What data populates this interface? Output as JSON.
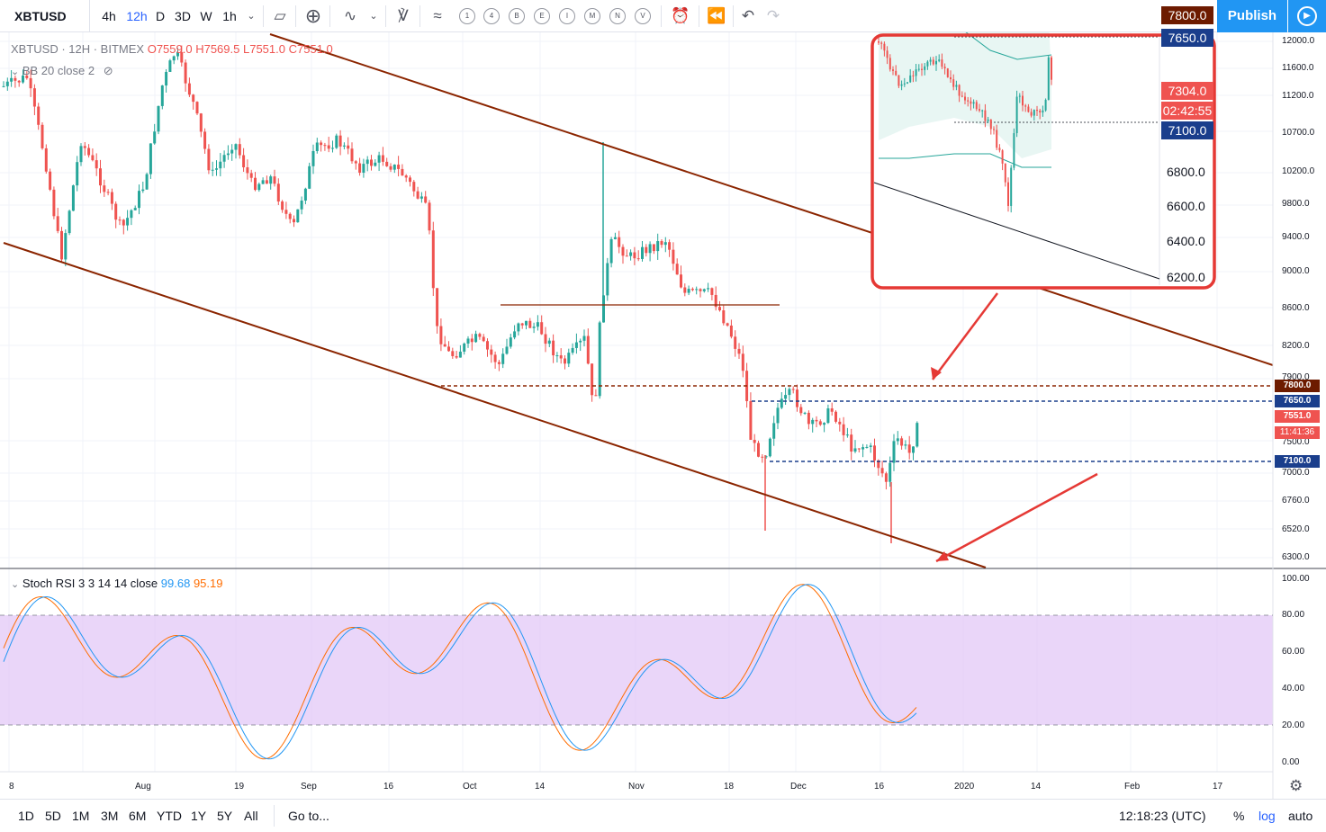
{
  "toolbar": {
    "symbol": "XBTUSD",
    "intervals": [
      "4h",
      "12h",
      "D",
      "3D",
      "W",
      "1h"
    ],
    "active_interval": "12h",
    "indicator_circles": [
      "1",
      "4",
      "B",
      "E",
      "I",
      "M",
      "N",
      "V"
    ],
    "publish_label": "Publish"
  },
  "legend": {
    "main": "XBTUSD · 12H · BITMEX",
    "open": "O7559.0",
    "high": "H7569.5",
    "low": "L7551.0",
    "close": "C7551.0",
    "indicator": "BB 20 close 2"
  },
  "stoch": {
    "label": "Stoch RSI 3 3 14 14 close",
    "k": "99.68",
    "d": "95.19"
  },
  "price_axis": [
    "12000.0",
    "11600.0",
    "11200.0",
    "10700.0",
    "10200.0",
    "9800.0",
    "9400.0",
    "9000.0",
    "8600.0",
    "8200.0",
    "7900.0",
    "7500.0",
    "7000.0",
    "6760.0",
    "6520.0",
    "6300.0"
  ],
  "price_tags": {
    "r1": "7800.0",
    "r2": "7650.0",
    "last": "7551.0",
    "countdown": "11:41:36",
    "s1": "7100.0"
  },
  "stoch_axis": [
    "100.00",
    "80.00",
    "60.00",
    "40.00",
    "20.00",
    "0.00"
  ],
  "time_axis": [
    "8",
    "Aug",
    "19",
    "Sep",
    "16",
    "Oct",
    "14",
    "Nov",
    "18",
    "Dec",
    "16",
    "2020",
    "14",
    "Feb",
    "17"
  ],
  "inset": {
    "tags": {
      "r1": "7800.0",
      "r2": "7650.0",
      "last": "7304.0",
      "countdown": "02:42:55",
      "s1": "7100.0"
    },
    "axis": [
      "6800.0",
      "6600.0",
      "6400.0",
      "6200.0"
    ]
  },
  "bottom": {
    "ranges": [
      "1D",
      "5D",
      "1M",
      "3M",
      "6M",
      "YTD",
      "1Y",
      "5Y",
      "All"
    ],
    "goto": "Go to...",
    "time": "12:18:23 (UTC)",
    "percent": "%",
    "log": "log",
    "auto": "auto"
  },
  "colors": {
    "up": "#26a69a",
    "down": "#ef5350",
    "channel": "#8b2500",
    "annotation": "#e53935",
    "stoch_band": "#e1c4f7",
    "k_line": "#2196f3",
    "d_line": "#ff6d00"
  }
}
